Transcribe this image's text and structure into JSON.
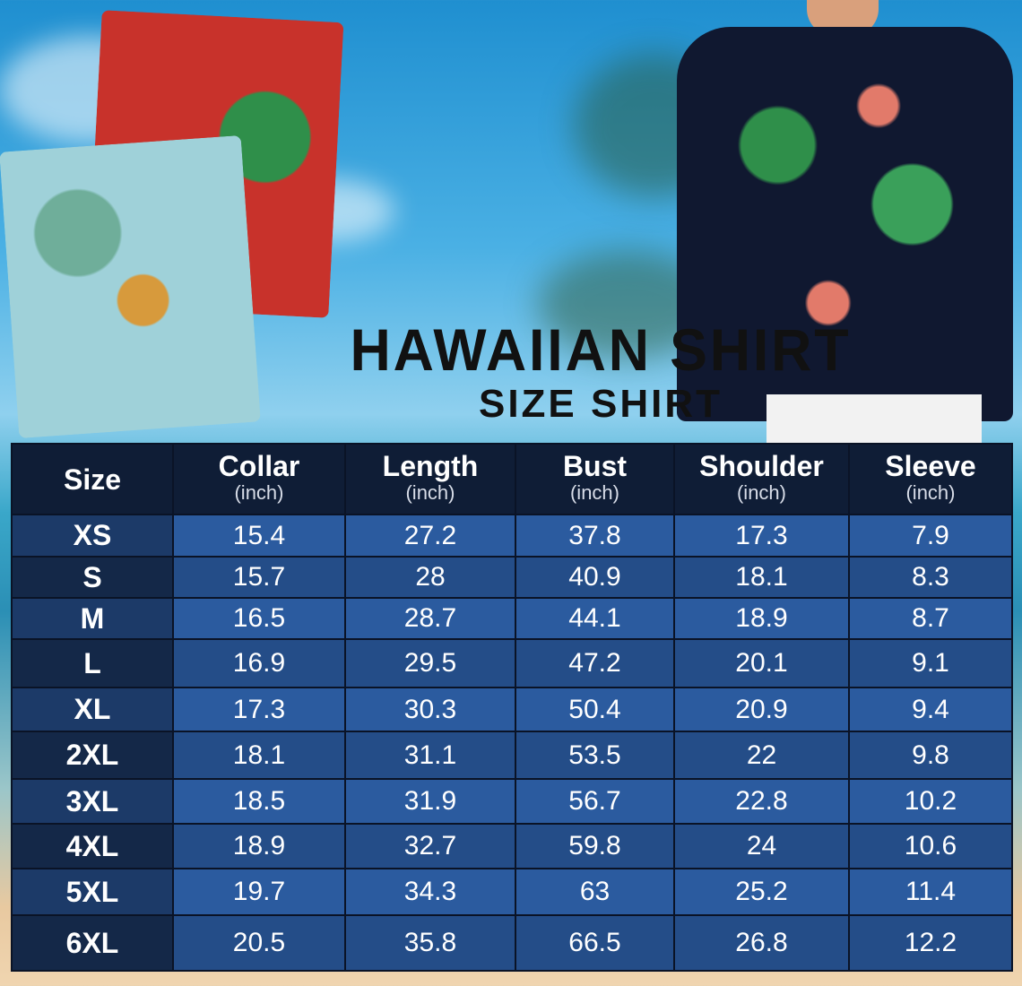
{
  "title": "HAWAIIAN SHIRT",
  "subtitle": "SIZE SHIRT",
  "table": {
    "headers": [
      {
        "label": "Size",
        "unit": ""
      },
      {
        "label": "Collar",
        "unit": "(inch)"
      },
      {
        "label": "Length",
        "unit": "(inch)"
      },
      {
        "label": "Bust",
        "unit": "(inch)"
      },
      {
        "label": "Shoulder",
        "unit": "(inch)"
      },
      {
        "label": "Sleeve",
        "unit": "(inch)"
      }
    ],
    "rows": [
      [
        "XS",
        "15.4",
        "27.2",
        "37.8",
        "17.3",
        "7.9"
      ],
      [
        "S",
        "15.7",
        "28",
        "40.9",
        "18.1",
        "8.3"
      ],
      [
        "M",
        "16.5",
        "28.7",
        "44.1",
        "18.9",
        "8.7"
      ],
      [
        "L",
        "16.9",
        "29.5",
        "47.2",
        "20.1",
        "9.1"
      ],
      [
        "XL",
        "17.3",
        "30.3",
        "50.4",
        "20.9",
        "9.4"
      ],
      [
        "2XL",
        "18.1",
        "31.1",
        "53.5",
        "22",
        "9.8"
      ],
      [
        "3XL",
        "18.5",
        "31.9",
        "56.7",
        "22.8",
        "10.2"
      ],
      [
        "4XL",
        "18.9",
        "32.7",
        "59.8",
        "24",
        "10.6"
      ],
      [
        "5XL",
        "19.7",
        "34.3",
        "63",
        "25.2",
        "11.4"
      ],
      [
        "6XL",
        "20.5",
        "35.8",
        "66.5",
        "26.8",
        "12.2"
      ]
    ]
  },
  "colors": {
    "header": "#0f1d36",
    "row_light": "#2b5b9f",
    "row_dark": "#244d88"
  }
}
